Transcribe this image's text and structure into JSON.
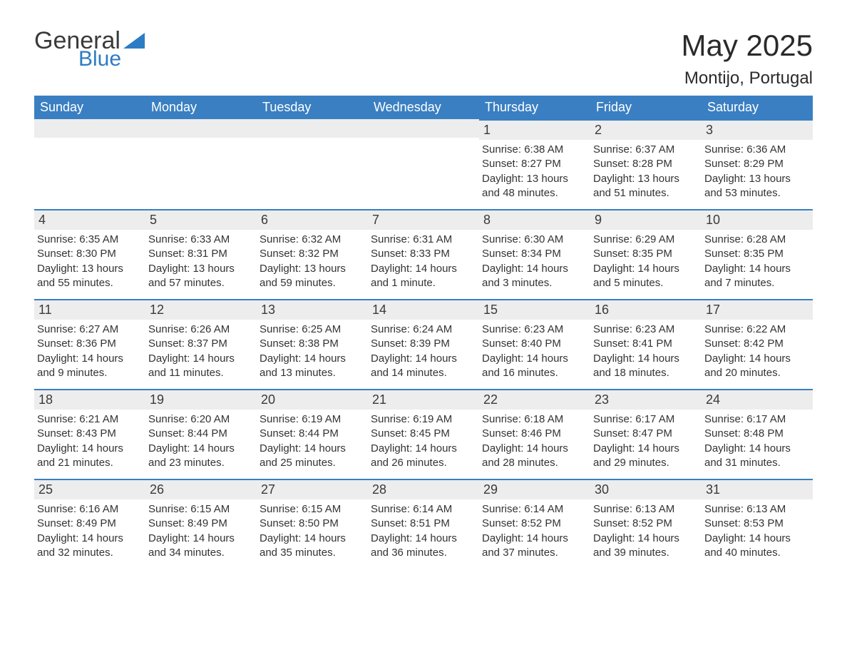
{
  "logo": {
    "general": "General",
    "blue": "Blue"
  },
  "title": "May 2025",
  "subtitle": "Montijo, Portugal",
  "brand_color": "#3a7fc2",
  "header_bg": "#3a7fc2",
  "bar_bg": "#ededed",
  "text_color": "#333333",
  "day_headers": [
    "Sunday",
    "Monday",
    "Tuesday",
    "Wednesday",
    "Thursday",
    "Friday",
    "Saturday"
  ],
  "weeks": [
    [
      {
        "n": "",
        "sunrise": "",
        "sunset": "",
        "daylight": ""
      },
      {
        "n": "",
        "sunrise": "",
        "sunset": "",
        "daylight": ""
      },
      {
        "n": "",
        "sunrise": "",
        "sunset": "",
        "daylight": ""
      },
      {
        "n": "",
        "sunrise": "",
        "sunset": "",
        "daylight": ""
      },
      {
        "n": "1",
        "sunrise": "Sunrise: 6:38 AM",
        "sunset": "Sunset: 8:27 PM",
        "daylight": "Daylight: 13 hours and 48 minutes."
      },
      {
        "n": "2",
        "sunrise": "Sunrise: 6:37 AM",
        "sunset": "Sunset: 8:28 PM",
        "daylight": "Daylight: 13 hours and 51 minutes."
      },
      {
        "n": "3",
        "sunrise": "Sunrise: 6:36 AM",
        "sunset": "Sunset: 8:29 PM",
        "daylight": "Daylight: 13 hours and 53 minutes."
      }
    ],
    [
      {
        "n": "4",
        "sunrise": "Sunrise: 6:35 AM",
        "sunset": "Sunset: 8:30 PM",
        "daylight": "Daylight: 13 hours and 55 minutes."
      },
      {
        "n": "5",
        "sunrise": "Sunrise: 6:33 AM",
        "sunset": "Sunset: 8:31 PM",
        "daylight": "Daylight: 13 hours and 57 minutes."
      },
      {
        "n": "6",
        "sunrise": "Sunrise: 6:32 AM",
        "sunset": "Sunset: 8:32 PM",
        "daylight": "Daylight: 13 hours and 59 minutes."
      },
      {
        "n": "7",
        "sunrise": "Sunrise: 6:31 AM",
        "sunset": "Sunset: 8:33 PM",
        "daylight": "Daylight: 14 hours and 1 minute."
      },
      {
        "n": "8",
        "sunrise": "Sunrise: 6:30 AM",
        "sunset": "Sunset: 8:34 PM",
        "daylight": "Daylight: 14 hours and 3 minutes."
      },
      {
        "n": "9",
        "sunrise": "Sunrise: 6:29 AM",
        "sunset": "Sunset: 8:35 PM",
        "daylight": "Daylight: 14 hours and 5 minutes."
      },
      {
        "n": "10",
        "sunrise": "Sunrise: 6:28 AM",
        "sunset": "Sunset: 8:35 PM",
        "daylight": "Daylight: 14 hours and 7 minutes."
      }
    ],
    [
      {
        "n": "11",
        "sunrise": "Sunrise: 6:27 AM",
        "sunset": "Sunset: 8:36 PM",
        "daylight": "Daylight: 14 hours and 9 minutes."
      },
      {
        "n": "12",
        "sunrise": "Sunrise: 6:26 AM",
        "sunset": "Sunset: 8:37 PM",
        "daylight": "Daylight: 14 hours and 11 minutes."
      },
      {
        "n": "13",
        "sunrise": "Sunrise: 6:25 AM",
        "sunset": "Sunset: 8:38 PM",
        "daylight": "Daylight: 14 hours and 13 minutes."
      },
      {
        "n": "14",
        "sunrise": "Sunrise: 6:24 AM",
        "sunset": "Sunset: 8:39 PM",
        "daylight": "Daylight: 14 hours and 14 minutes."
      },
      {
        "n": "15",
        "sunrise": "Sunrise: 6:23 AM",
        "sunset": "Sunset: 8:40 PM",
        "daylight": "Daylight: 14 hours and 16 minutes."
      },
      {
        "n": "16",
        "sunrise": "Sunrise: 6:23 AM",
        "sunset": "Sunset: 8:41 PM",
        "daylight": "Daylight: 14 hours and 18 minutes."
      },
      {
        "n": "17",
        "sunrise": "Sunrise: 6:22 AM",
        "sunset": "Sunset: 8:42 PM",
        "daylight": "Daylight: 14 hours and 20 minutes."
      }
    ],
    [
      {
        "n": "18",
        "sunrise": "Sunrise: 6:21 AM",
        "sunset": "Sunset: 8:43 PM",
        "daylight": "Daylight: 14 hours and 21 minutes."
      },
      {
        "n": "19",
        "sunrise": "Sunrise: 6:20 AM",
        "sunset": "Sunset: 8:44 PM",
        "daylight": "Daylight: 14 hours and 23 minutes."
      },
      {
        "n": "20",
        "sunrise": "Sunrise: 6:19 AM",
        "sunset": "Sunset: 8:44 PM",
        "daylight": "Daylight: 14 hours and 25 minutes."
      },
      {
        "n": "21",
        "sunrise": "Sunrise: 6:19 AM",
        "sunset": "Sunset: 8:45 PM",
        "daylight": "Daylight: 14 hours and 26 minutes."
      },
      {
        "n": "22",
        "sunrise": "Sunrise: 6:18 AM",
        "sunset": "Sunset: 8:46 PM",
        "daylight": "Daylight: 14 hours and 28 minutes."
      },
      {
        "n": "23",
        "sunrise": "Sunrise: 6:17 AM",
        "sunset": "Sunset: 8:47 PM",
        "daylight": "Daylight: 14 hours and 29 minutes."
      },
      {
        "n": "24",
        "sunrise": "Sunrise: 6:17 AM",
        "sunset": "Sunset: 8:48 PM",
        "daylight": "Daylight: 14 hours and 31 minutes."
      }
    ],
    [
      {
        "n": "25",
        "sunrise": "Sunrise: 6:16 AM",
        "sunset": "Sunset: 8:49 PM",
        "daylight": "Daylight: 14 hours and 32 minutes."
      },
      {
        "n": "26",
        "sunrise": "Sunrise: 6:15 AM",
        "sunset": "Sunset: 8:49 PM",
        "daylight": "Daylight: 14 hours and 34 minutes."
      },
      {
        "n": "27",
        "sunrise": "Sunrise: 6:15 AM",
        "sunset": "Sunset: 8:50 PM",
        "daylight": "Daylight: 14 hours and 35 minutes."
      },
      {
        "n": "28",
        "sunrise": "Sunrise: 6:14 AM",
        "sunset": "Sunset: 8:51 PM",
        "daylight": "Daylight: 14 hours and 36 minutes."
      },
      {
        "n": "29",
        "sunrise": "Sunrise: 6:14 AM",
        "sunset": "Sunset: 8:52 PM",
        "daylight": "Daylight: 14 hours and 37 minutes."
      },
      {
        "n": "30",
        "sunrise": "Sunrise: 6:13 AM",
        "sunset": "Sunset: 8:52 PM",
        "daylight": "Daylight: 14 hours and 39 minutes."
      },
      {
        "n": "31",
        "sunrise": "Sunrise: 6:13 AM",
        "sunset": "Sunset: 8:53 PM",
        "daylight": "Daylight: 14 hours and 40 minutes."
      }
    ]
  ]
}
